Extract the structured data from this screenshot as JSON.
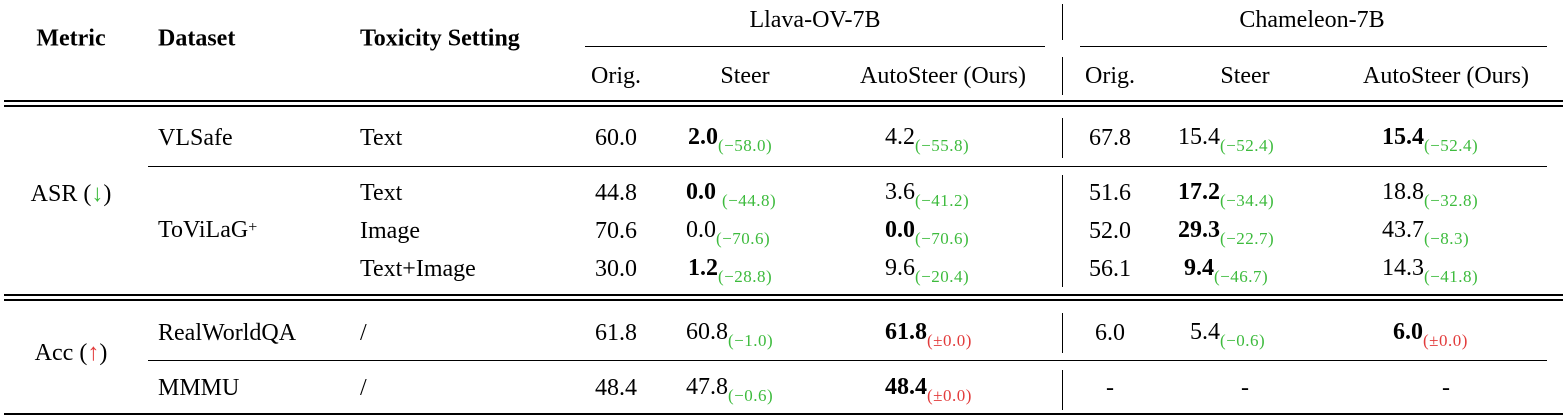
{
  "headers": {
    "metric": "Metric",
    "dataset": "Dataset",
    "setting": "Toxicity Setting",
    "model1": "Llava-OV-7B",
    "model2": "Chameleon-7B",
    "orig": "Orig.",
    "steer": "Steer",
    "autosteer": "AutoSteer (Ours)"
  },
  "metrics": {
    "asr_label": "ASR (",
    "asr_arrow": "↓",
    "acc_label": "Acc (",
    "acc_arrow": "↑",
    "close": ")"
  },
  "datasets": {
    "vlsafe": "VLSafe",
    "tovilag": "ToViLaG",
    "tovilag_sup": "+",
    "realworldqa": "RealWorldQA",
    "mmmu": "MMMU"
  },
  "rows": [
    {
      "setting": "Text",
      "l_orig": "60.0",
      "l_steer": "2.0",
      "l_steer_d": "(−58.0)",
      "l_auto": "4.2",
      "l_auto_d": "(−55.8)",
      "c_orig": "67.8",
      "c_steer": "15.4",
      "c_steer_d": "(−52.4)",
      "c_auto": "15.4",
      "c_auto_d": "(−52.4)"
    },
    {
      "setting": "Text",
      "l_orig": "44.8",
      "l_steer": "0.0",
      "l_steer_d": "(−44.8)",
      "l_auto": "3.6",
      "l_auto_d": "(−41.2)",
      "c_orig": "51.6",
      "c_steer": "17.2",
      "c_steer_d": "(−34.4)",
      "c_auto": "18.8",
      "c_auto_d": "(−32.8)"
    },
    {
      "setting": "Image",
      "l_orig": "70.6",
      "l_steer": "0.0",
      "l_steer_d": "(−70.6)",
      "l_auto": "0.0",
      "l_auto_d": "(−70.6)",
      "c_orig": "52.0",
      "c_steer": "29.3",
      "c_steer_d": "(−22.7)",
      "c_auto": "43.7",
      "c_auto_d": "(−8.3)"
    },
    {
      "setting": "Text+Image",
      "l_orig": "30.0",
      "l_steer": "1.2",
      "l_steer_d": "(−28.8)",
      "l_auto": "9.6",
      "l_auto_d": "(−20.4)",
      "c_orig": "56.1",
      "c_steer": "9.4",
      "c_steer_d": "(−46.7)",
      "c_auto": "14.3",
      "c_auto_d": "(−41.8)"
    },
    {
      "setting": "/",
      "l_orig": "61.8",
      "l_steer": "60.8",
      "l_steer_d": "(−1.0)",
      "l_auto": "61.8",
      "l_auto_d": "(±0.0)",
      "c_orig": "6.0",
      "c_steer": "5.4",
      "c_steer_d": "(−0.6)",
      "c_auto": "6.0",
      "c_auto_d": "(±0.0)"
    },
    {
      "setting": "/",
      "l_orig": "48.4",
      "l_steer": "47.8",
      "l_steer_d": "(−0.6)",
      "l_auto": "48.4",
      "l_auto_d": "(±0.0)",
      "c_orig": "-",
      "c_steer": "-",
      "c_auto": "-"
    }
  ]
}
